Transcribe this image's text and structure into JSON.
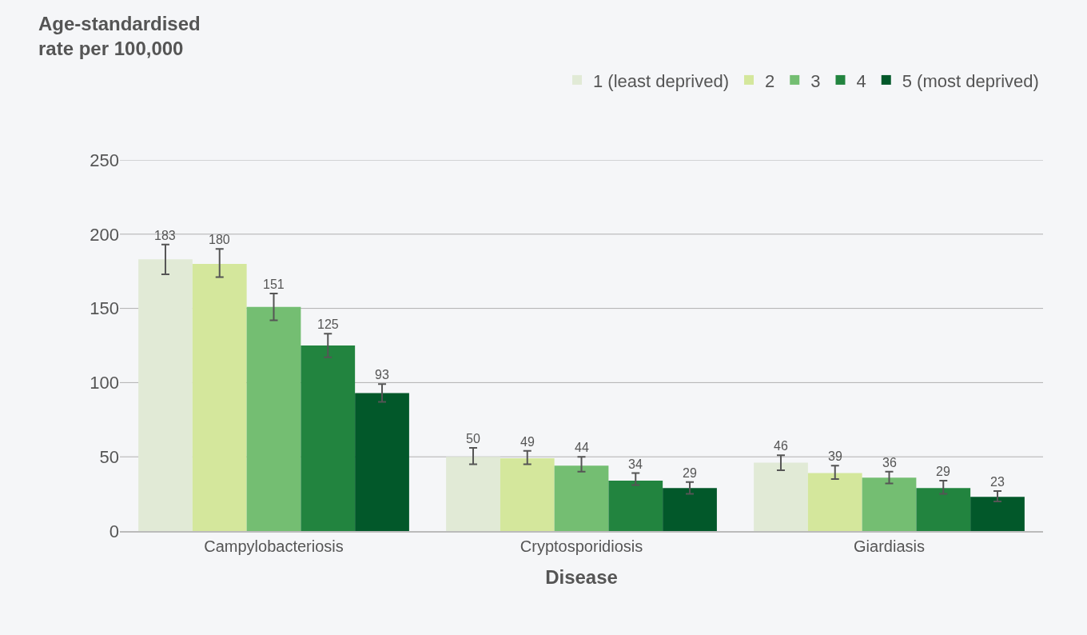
{
  "chart_data": {
    "type": "bar",
    "ylabel": "Age-standardised\nrate per 100,000",
    "xlabel": "Disease",
    "categories": [
      "Campylobacteriosis",
      "Cryptosporidiosis",
      "Giardiasis"
    ],
    "series": [
      {
        "name": "1 (least deprived)",
        "color": "#e1ead6",
        "values": [
          183,
          50,
          46
        ],
        "errors": [
          [
            173,
            193
          ],
          [
            45,
            56
          ],
          [
            41,
            51
          ]
        ]
      },
      {
        "name": "2",
        "color": "#d4e79c",
        "values": [
          180,
          49,
          39
        ],
        "errors": [
          [
            171,
            190
          ],
          [
            45,
            54
          ],
          [
            35,
            44
          ]
        ]
      },
      {
        "name": "3",
        "color": "#74be72",
        "values": [
          151,
          44,
          36
        ],
        "errors": [
          [
            142,
            160
          ],
          [
            40,
            50
          ],
          [
            32,
            40
          ]
        ]
      },
      {
        "name": "4",
        "color": "#22843f",
        "values": [
          125,
          34,
          29
        ],
        "errors": [
          [
            117,
            133
          ],
          [
            31,
            39
          ],
          [
            25,
            34
          ]
        ]
      },
      {
        "name": "5 (most deprived)",
        "color": "#02582a",
        "values": [
          93,
          29,
          23
        ],
        "errors": [
          [
            87,
            99
          ],
          [
            25,
            33
          ],
          [
            20,
            27
          ]
        ]
      }
    ],
    "ylim": [
      0,
      250
    ],
    "yticks": [
      0,
      50,
      100,
      150,
      200,
      250
    ],
    "grid": "y",
    "legend": "top right",
    "data_labels": true
  }
}
